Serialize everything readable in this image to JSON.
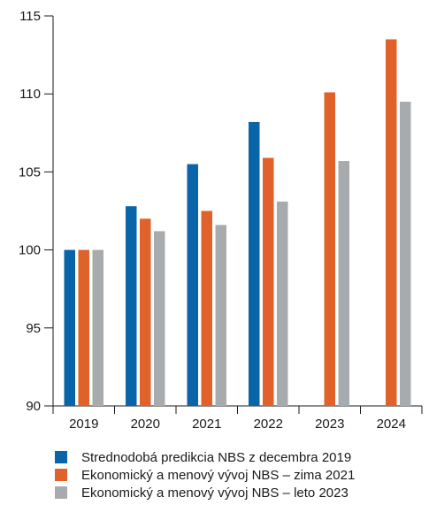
{
  "chart_data": {
    "type": "bar",
    "categories": [
      "2019",
      "2020",
      "2021",
      "2022",
      "2023",
      "2024"
    ],
    "series": [
      {
        "name": "Strednodobá predikcia NBS z decembra 2019",
        "color": "#0a64a8",
        "values": [
          100,
          102.8,
          105.5,
          108.2,
          null,
          null
        ]
      },
      {
        "name": "Ekonomický a menový vývoj NBS – zima 2021",
        "color": "#e0622a",
        "values": [
          100,
          102,
          102.5,
          105.9,
          110.1,
          113.5
        ]
      },
      {
        "name": "Ekonomický a menový vývoj NBS – leto 2023",
        "color": "#a8abad",
        "values": [
          100,
          101.2,
          101.6,
          103.1,
          105.7,
          109.5
        ]
      }
    ],
    "ylim": [
      90,
      115
    ],
    "yticks": [
      "90",
      "95",
      "100",
      "105",
      "110",
      "115"
    ],
    "grid": false,
    "legend_position": "bottom"
  }
}
